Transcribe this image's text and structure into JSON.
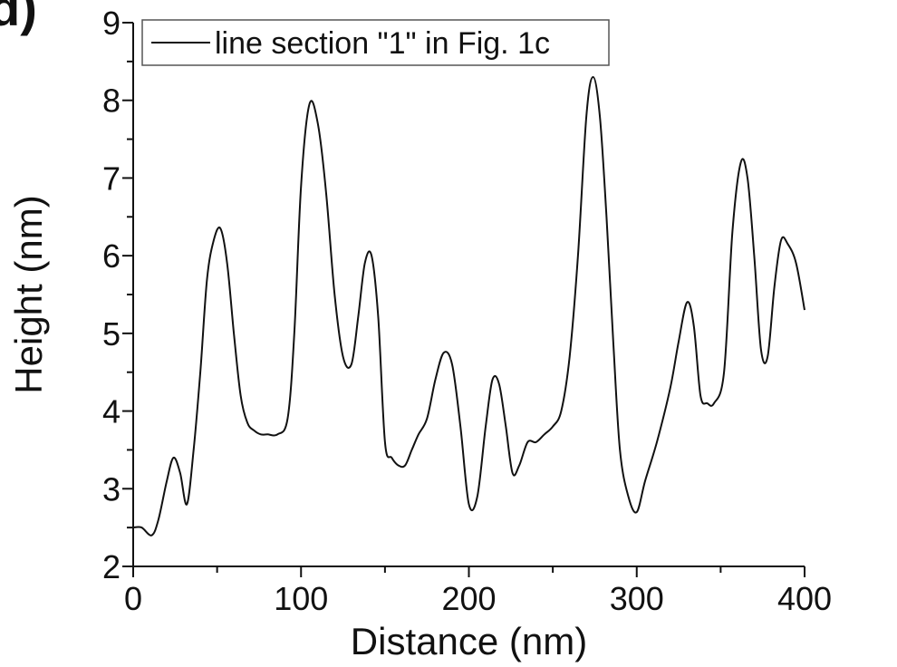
{
  "panel_label": "d)",
  "chart_data": {
    "type": "line",
    "title": "",
    "xlabel": "Distance (nm)",
    "ylabel": "Height (nm)",
    "xlim": [
      0,
      400
    ],
    "ylim": [
      2,
      9
    ],
    "xticks": [
      0,
      100,
      200,
      300,
      400
    ],
    "yticks": [
      2,
      3,
      4,
      5,
      6,
      7,
      8,
      9
    ],
    "grid": false,
    "legend_position": "top-left",
    "series": [
      {
        "name": "line section \"1\" in Fig. 1c",
        "color": "#111111",
        "x": [
          0,
          5,
          11,
          15,
          20,
          24,
          28,
          32,
          36,
          40,
          44,
          48,
          52,
          56,
          60,
          64,
          68,
          72,
          76,
          80,
          86,
          92,
          96,
          100,
          105,
          110,
          115,
          120,
          125,
          130,
          134,
          138,
          142,
          146,
          150,
          154,
          158,
          162,
          166,
          170,
          175,
          180,
          185,
          190,
          195,
          200,
          205,
          210,
          214,
          218,
          222,
          226,
          230,
          235,
          240,
          245,
          250,
          255,
          260,
          265,
          270,
          274,
          278,
          282,
          286,
          290,
          295,
          300,
          305,
          312,
          320,
          325,
          330,
          334,
          338,
          342,
          346,
          352,
          357,
          362,
          366,
          370,
          374,
          378,
          382,
          386,
          390,
          395,
          400
        ],
        "y": [
          2.5,
          2.5,
          2.4,
          2.6,
          3.1,
          3.4,
          3.2,
          2.8,
          3.5,
          4.5,
          5.7,
          6.2,
          6.35,
          5.9,
          5.0,
          4.2,
          3.85,
          3.75,
          3.7,
          3.7,
          3.7,
          3.9,
          5.0,
          6.9,
          7.95,
          7.7,
          6.8,
          5.5,
          4.7,
          4.6,
          5.2,
          5.9,
          6.0,
          5.2,
          3.6,
          3.4,
          3.3,
          3.3,
          3.5,
          3.7,
          3.9,
          4.4,
          4.75,
          4.6,
          3.8,
          2.8,
          2.9,
          3.8,
          4.4,
          4.35,
          3.8,
          3.2,
          3.3,
          3.6,
          3.6,
          3.7,
          3.8,
          4.0,
          4.7,
          6.0,
          7.8,
          8.3,
          7.8,
          6.5,
          4.9,
          3.5,
          2.9,
          2.7,
          3.1,
          3.6,
          4.3,
          4.9,
          5.4,
          5.1,
          4.2,
          4.1,
          4.1,
          4.5,
          6.3,
          7.2,
          7.0,
          6.0,
          4.8,
          4.7,
          5.6,
          6.2,
          6.15,
          5.9,
          5.3
        ]
      }
    ]
  }
}
